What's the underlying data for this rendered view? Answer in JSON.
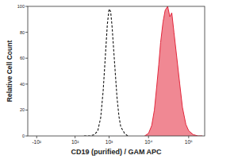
{
  "chart_data": {
    "type": "line",
    "x_label": "CD19 (purified) / GAM APC",
    "y_label": "Relative Cell Count",
    "log": "x",
    "grid": false,
    "x": [
      200,
      300,
      400,
      500,
      600,
      700,
      800,
      900,
      1000,
      1100,
      1200,
      1400,
      1600,
      1800,
      2000,
      2500,
      3000,
      4000,
      6000,
      8000,
      10000,
      12000,
      14000,
      16000,
      18000,
      20000,
      23000,
      26000,
      30000,
      34000,
      38000,
      43000,
      50000,
      60000,
      70000,
      85000,
      100000,
      130000,
      170000,
      220000
    ],
    "series": [
      {
        "color": "#111111",
        "line_style": "dashed",
        "type": "line",
        "values": [
          0,
          0,
          1,
          4,
          14,
          35,
          62,
          86,
          98,
          96,
          84,
          55,
          30,
          15,
          7,
          2,
          0,
          null,
          null,
          null,
          null,
          null,
          null,
          null,
          null,
          null,
          null,
          null,
          null,
          null,
          null,
          null,
          null,
          null,
          null,
          null,
          null,
          null,
          null,
          null
        ]
      },
      {
        "color": "#e3263b",
        "line_style": "solid",
        "type": "area",
        "values": [
          null,
          null,
          null,
          null,
          null,
          null,
          null,
          null,
          null,
          null,
          null,
          null,
          null,
          null,
          null,
          null,
          null,
          null,
          null,
          0,
          2,
          8,
          20,
          38,
          55,
          72,
          88,
          97,
          100,
          92,
          95,
          80,
          62,
          40,
          22,
          9,
          4,
          1,
          0,
          0
        ]
      }
    ],
    "xlim": [
      -200,
      250000
    ],
    "xticks": [
      {
        "value": -100,
        "label": "-10²"
      },
      {
        "value": 100,
        "label": "10²"
      },
      {
        "value": 1000,
        "label": "10³"
      },
      {
        "value": 10000,
        "label": "10⁴"
      },
      {
        "value": 100000,
        "label": "10⁵"
      }
    ],
    "ylim": [
      0,
      100
    ],
    "yticks": [
      0,
      20,
      40,
      60,
      80,
      100
    ]
  }
}
